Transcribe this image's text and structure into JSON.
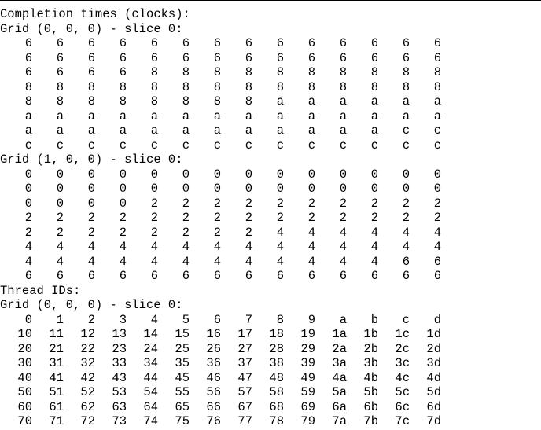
{
  "output": {
    "completion_header": "Completion times (clocks):",
    "completion_grids": [
      {
        "title": "Grid (0, 0, 0) - slice 0:",
        "rows": [
          [
            "6",
            "6",
            "6",
            "6",
            "6",
            "6",
            "6",
            "6",
            "6",
            "6",
            "6",
            "6",
            "6",
            "6"
          ],
          [
            "6",
            "6",
            "6",
            "6",
            "6",
            "6",
            "6",
            "6",
            "6",
            "6",
            "6",
            "6",
            "6",
            "6"
          ],
          [
            "6",
            "6",
            "6",
            "6",
            "8",
            "8",
            "8",
            "8",
            "8",
            "8",
            "8",
            "8",
            "8",
            "8"
          ],
          [
            "8",
            "8",
            "8",
            "8",
            "8",
            "8",
            "8",
            "8",
            "8",
            "8",
            "8",
            "8",
            "8",
            "8"
          ],
          [
            "8",
            "8",
            "8",
            "8",
            "8",
            "8",
            "8",
            "8",
            "a",
            "a",
            "a",
            "a",
            "a",
            "a"
          ],
          [
            "a",
            "a",
            "a",
            "a",
            "a",
            "a",
            "a",
            "a",
            "a",
            "a",
            "a",
            "a",
            "a",
            "a"
          ],
          [
            "a",
            "a",
            "a",
            "a",
            "a",
            "a",
            "a",
            "a",
            "a",
            "a",
            "a",
            "a",
            "c",
            "c"
          ],
          [
            "c",
            "c",
            "c",
            "c",
            "c",
            "c",
            "c",
            "c",
            "c",
            "c",
            "c",
            "c",
            "c",
            "c"
          ]
        ]
      },
      {
        "title": "Grid (1, 0, 0) - slice 0:",
        "rows": [
          [
            "0",
            "0",
            "0",
            "0",
            "0",
            "0",
            "0",
            "0",
            "0",
            "0",
            "0",
            "0",
            "0",
            "0"
          ],
          [
            "0",
            "0",
            "0",
            "0",
            "0",
            "0",
            "0",
            "0",
            "0",
            "0",
            "0",
            "0",
            "0",
            "0"
          ],
          [
            "0",
            "0",
            "0",
            "0",
            "2",
            "2",
            "2",
            "2",
            "2",
            "2",
            "2",
            "2",
            "2",
            "2"
          ],
          [
            "2",
            "2",
            "2",
            "2",
            "2",
            "2",
            "2",
            "2",
            "2",
            "2",
            "2",
            "2",
            "2",
            "2"
          ],
          [
            "2",
            "2",
            "2",
            "2",
            "2",
            "2",
            "2",
            "2",
            "4",
            "4",
            "4",
            "4",
            "4",
            "4"
          ],
          [
            "4",
            "4",
            "4",
            "4",
            "4",
            "4",
            "4",
            "4",
            "4",
            "4",
            "4",
            "4",
            "4",
            "4"
          ],
          [
            "4",
            "4",
            "4",
            "4",
            "4",
            "4",
            "4",
            "4",
            "4",
            "4",
            "4",
            "4",
            "6",
            "6"
          ],
          [
            "6",
            "6",
            "6",
            "6",
            "6",
            "6",
            "6",
            "6",
            "6",
            "6",
            "6",
            "6",
            "6",
            "6"
          ]
        ]
      }
    ],
    "thread_header": "Thread IDs:",
    "thread_grid": {
      "title": "Grid (0, 0, 0) - slice 0:",
      "rows": [
        [
          "0",
          "1",
          "2",
          "3",
          "4",
          "5",
          "6",
          "7",
          "8",
          "9",
          "a",
          "b",
          "c",
          "d"
        ],
        [
          "10",
          "11",
          "12",
          "13",
          "14",
          "15",
          "16",
          "17",
          "18",
          "19",
          "1a",
          "1b",
          "1c",
          "1d"
        ],
        [
          "20",
          "21",
          "22",
          "23",
          "24",
          "25",
          "26",
          "27",
          "28",
          "29",
          "2a",
          "2b",
          "2c",
          "2d"
        ],
        [
          "30",
          "31",
          "32",
          "33",
          "34",
          "35",
          "36",
          "37",
          "38",
          "39",
          "3a",
          "3b",
          "3c",
          "3d"
        ],
        [
          "40",
          "41",
          "42",
          "43",
          "44",
          "45",
          "46",
          "47",
          "48",
          "49",
          "4a",
          "4b",
          "4c",
          "4d"
        ],
        [
          "50",
          "51",
          "52",
          "53",
          "54",
          "55",
          "56",
          "57",
          "58",
          "59",
          "5a",
          "5b",
          "5c",
          "5d"
        ],
        [
          "60",
          "61",
          "62",
          "63",
          "64",
          "65",
          "66",
          "67",
          "68",
          "69",
          "6a",
          "6b",
          "6c",
          "6d"
        ],
        [
          "70",
          "71",
          "72",
          "73",
          "74",
          "75",
          "76",
          "77",
          "78",
          "79",
          "7a",
          "7b",
          "7c",
          "7d"
        ]
      ]
    }
  }
}
